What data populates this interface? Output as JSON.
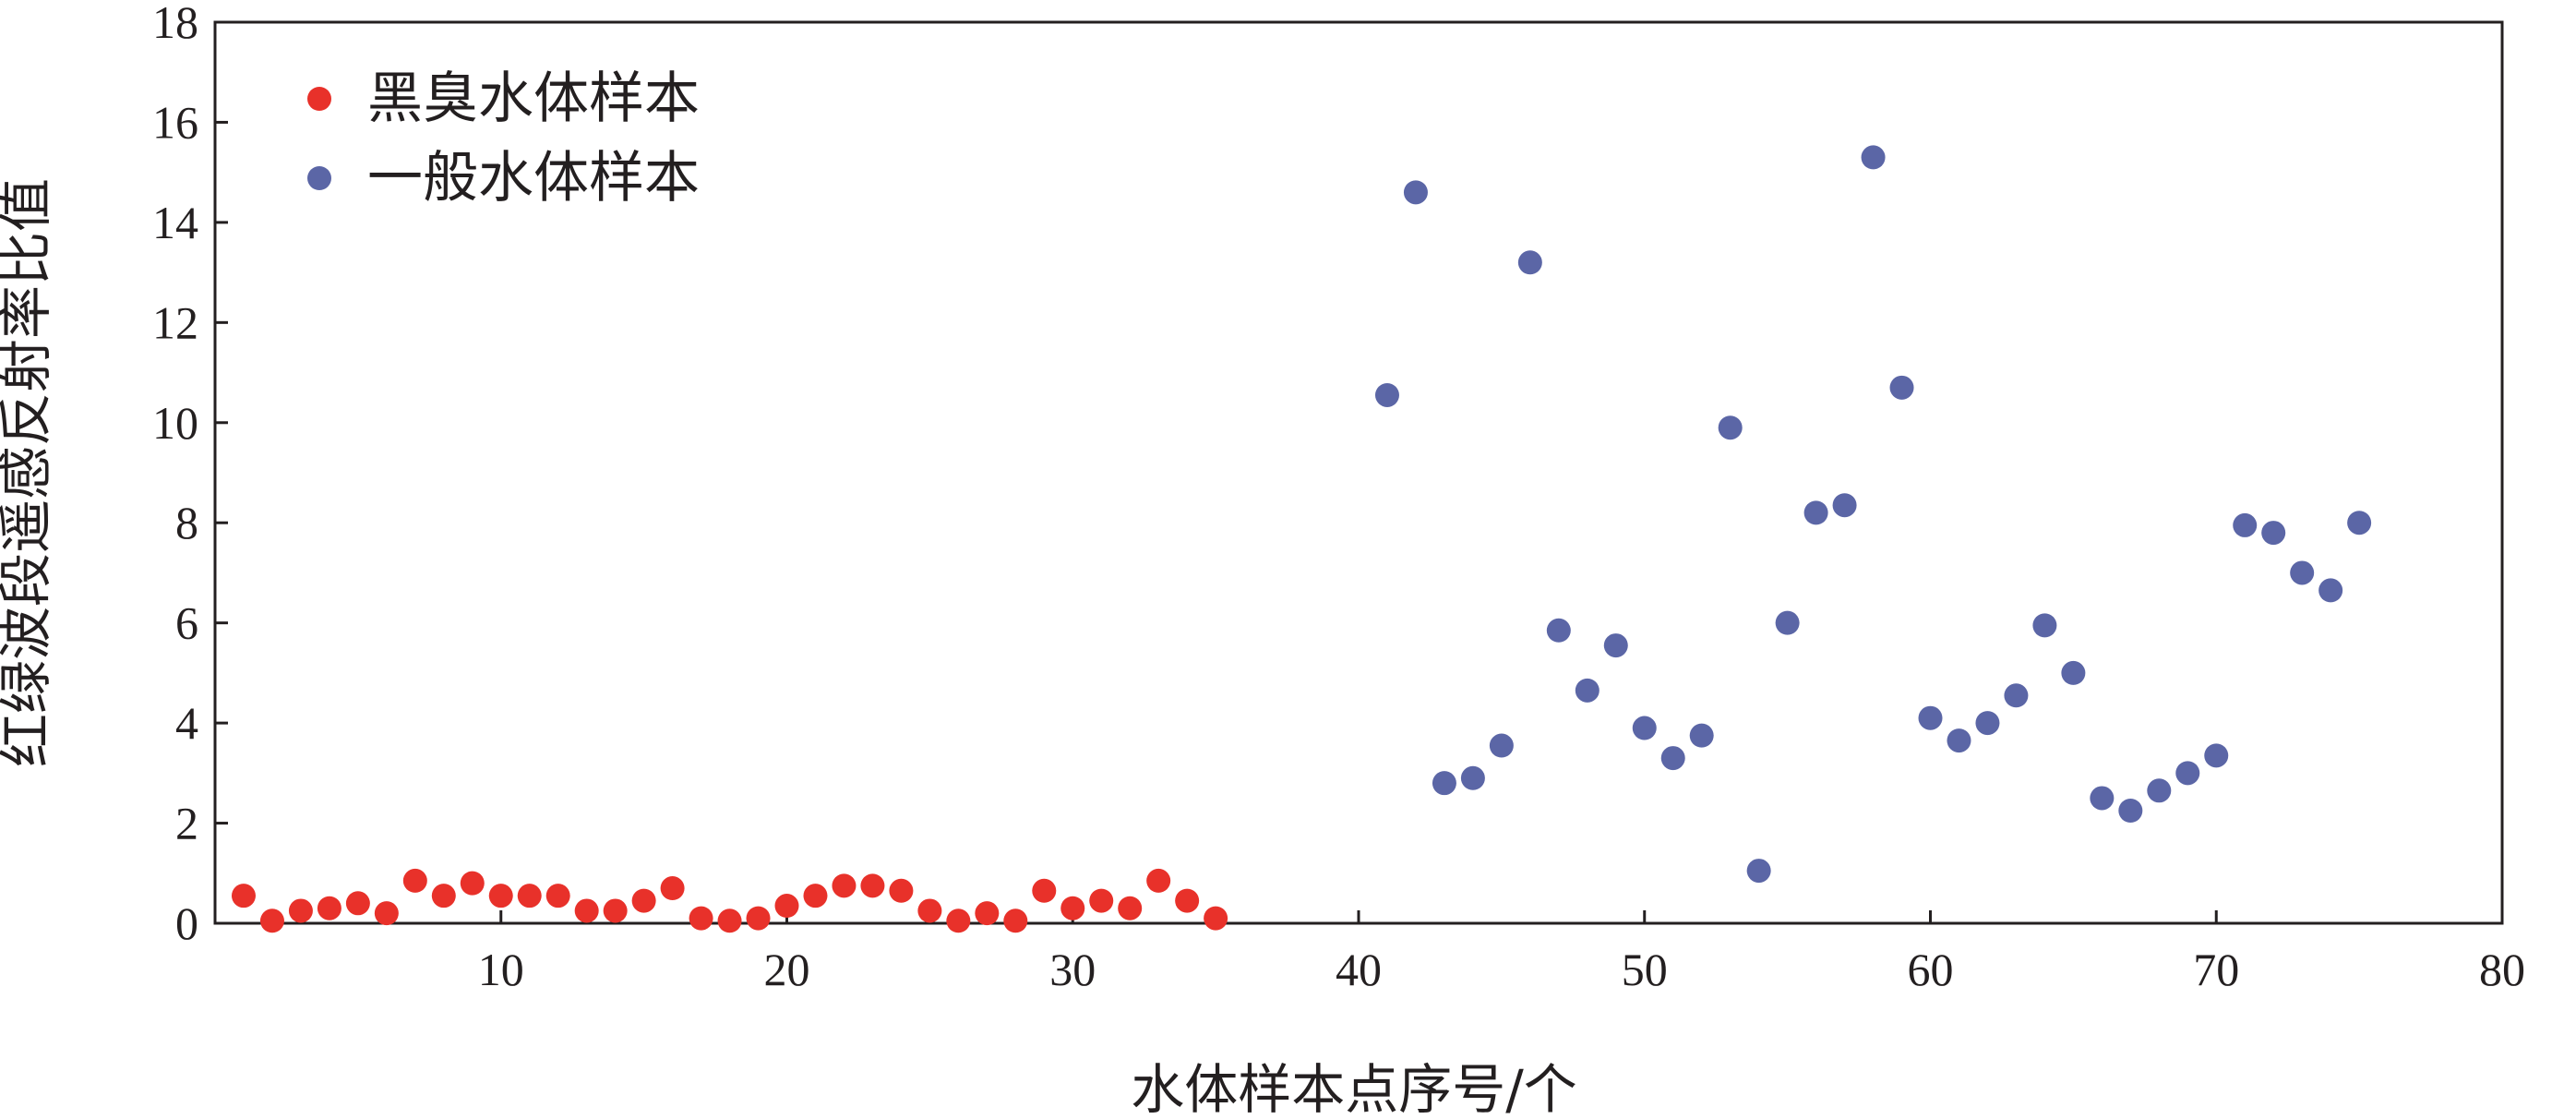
{
  "chart_data": {
    "type": "scatter",
    "xlabel": "水体样本点序号/个",
    "ylabel": "红绿波段遥感反射率比值",
    "xlim": [
      0,
      80
    ],
    "ylim": [
      0,
      18
    ],
    "x_ticks": [
      10,
      20,
      30,
      40,
      50,
      60,
      70,
      80
    ],
    "y_ticks": [
      0,
      2,
      4,
      6,
      8,
      10,
      12,
      14,
      16,
      18
    ],
    "grid": false,
    "legend_position": "top-left",
    "series": [
      {
        "name": "黑臭水体样本",
        "color": "#e8312a",
        "x": [
          1,
          2,
          3,
          4,
          5,
          6,
          7,
          8,
          9,
          10,
          11,
          12,
          13,
          14,
          15,
          16,
          17,
          18,
          19,
          20,
          21,
          22,
          23,
          24,
          25,
          26,
          27,
          28,
          29,
          30,
          31,
          32,
          33,
          34,
          35
        ],
        "y": [
          0.55,
          0.05,
          0.25,
          0.3,
          0.4,
          0.2,
          0.85,
          0.55,
          0.8,
          0.55,
          0.55,
          0.55,
          0.25,
          0.25,
          0.45,
          0.7,
          0.1,
          0.05,
          0.1,
          0.35,
          0.55,
          0.75,
          0.75,
          0.65,
          0.25,
          0.05,
          0.2,
          0.05,
          0.65,
          0.3,
          0.45,
          0.3,
          0.85,
          0.45,
          0.1
        ]
      },
      {
        "name": "一般水体样本",
        "color": "#5b66a6",
        "x": [
          41,
          42,
          43,
          44,
          45,
          46,
          47,
          48,
          49,
          50,
          51,
          52,
          53,
          54,
          55,
          56,
          57,
          58,
          59,
          60,
          61,
          62,
          63,
          64,
          65,
          66,
          67,
          68,
          69,
          70,
          71,
          72,
          73,
          74,
          75
        ],
        "y": [
          10.55,
          14.6,
          2.8,
          2.9,
          3.55,
          13.2,
          5.85,
          4.65,
          5.55,
          3.9,
          3.3,
          3.75,
          9.9,
          1.05,
          6.0,
          8.2,
          8.35,
          15.3,
          10.7,
          4.1,
          3.65,
          4.0,
          4.55,
          5.95,
          5.0,
          2.5,
          2.25,
          2.65,
          3.0,
          3.35,
          7.95,
          7.8,
          7.0,
          6.65,
          8.0
        ]
      }
    ]
  }
}
